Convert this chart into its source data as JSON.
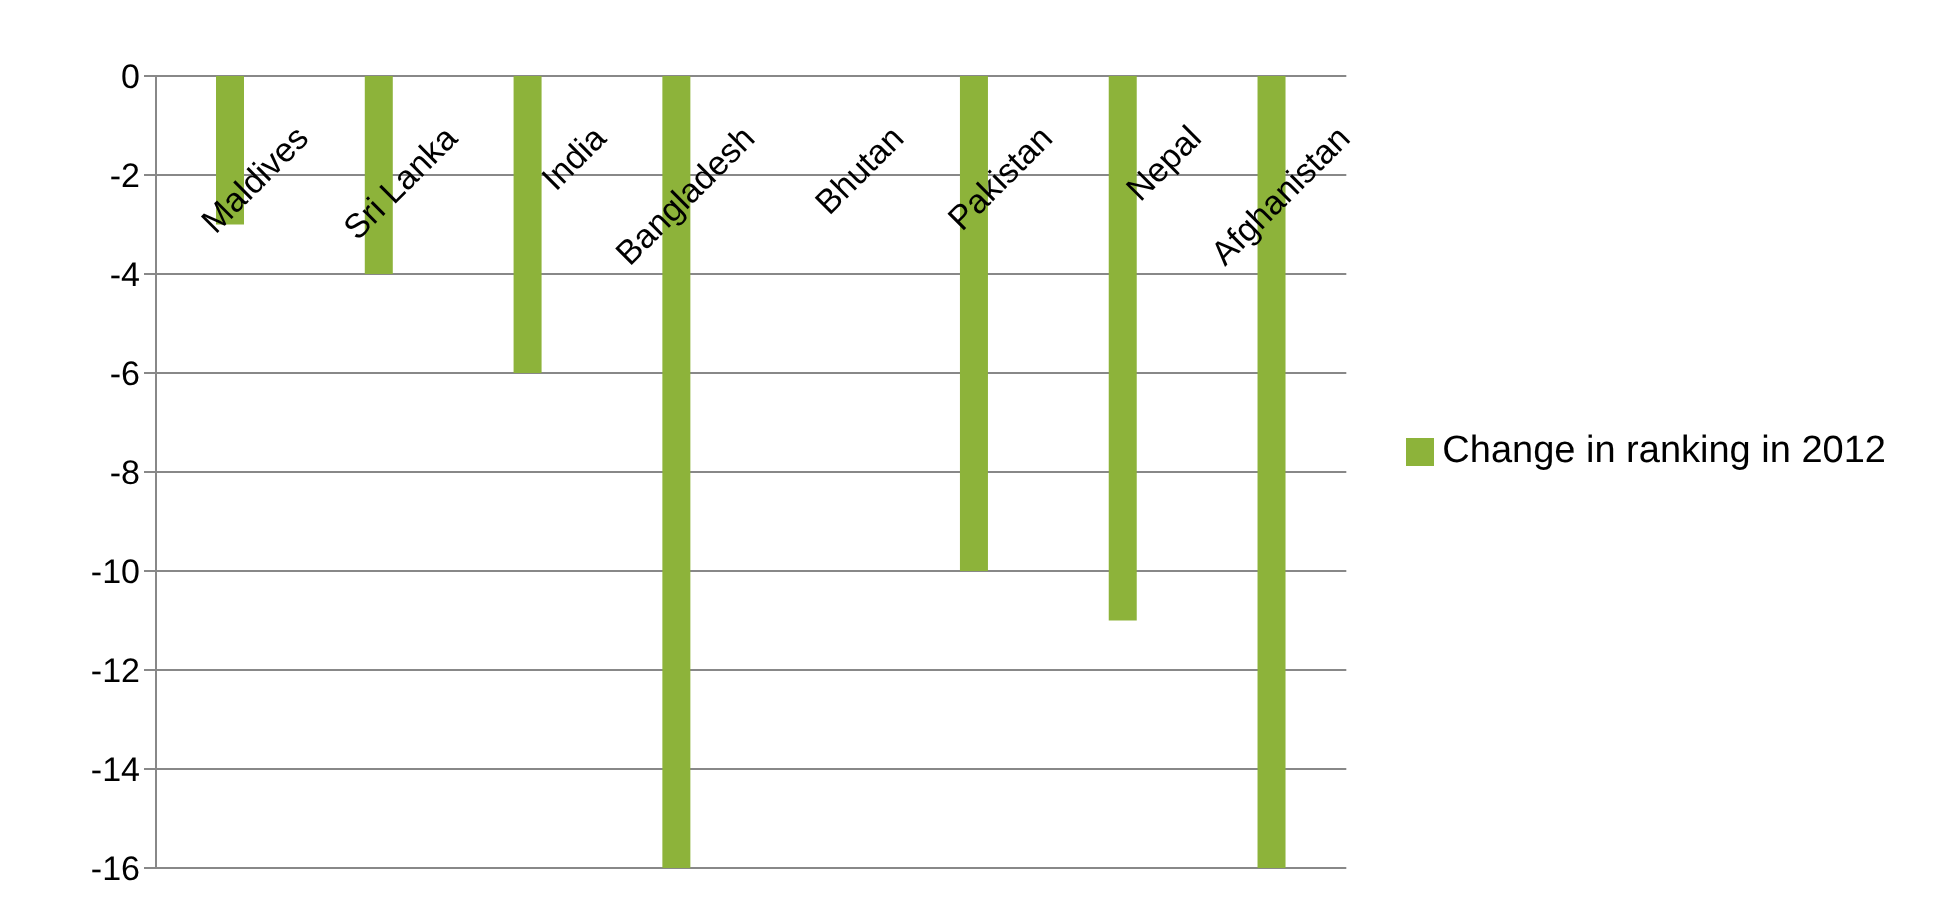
{
  "chart_data": {
    "type": "bar",
    "categories": [
      "Maldives",
      "Sri Lanka",
      "India",
      "Bangladesh",
      "Bhutan",
      "Pakistan",
      "Nepal",
      "Afghanistan"
    ],
    "series": [
      {
        "name": "Change in ranking in 2012",
        "color": "#8db33a",
        "values": [
          -3,
          -4,
          -6,
          -16,
          0,
          -10,
          -11,
          -16
        ]
      }
    ],
    "ylim": [
      -16,
      0
    ],
    "yticks": [
      0,
      -2,
      -4,
      -6,
      -8,
      -10,
      -12,
      -14,
      -16
    ],
    "grid": "y",
    "legend": "right"
  }
}
